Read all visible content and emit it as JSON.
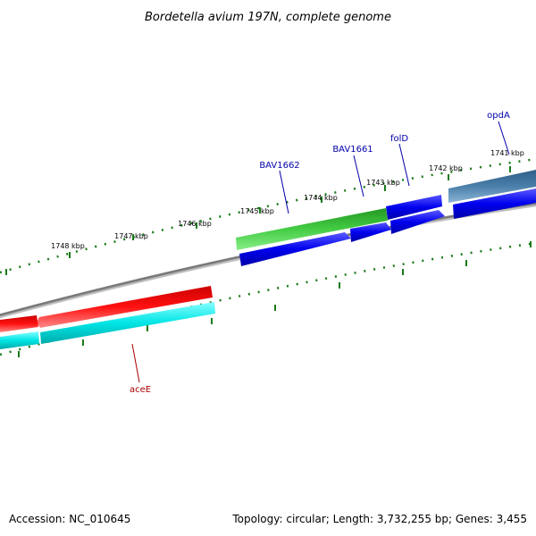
{
  "title": "Bordetella avium 197N, complete genome",
  "footer": {
    "accession": "Accession: NC_010645",
    "summary": "Topology: circular; Length: 3,732,255 bp; Genes: 3,455"
  },
  "colors": {
    "backbone": "#808080",
    "tick": "#1a7a1a",
    "forward_cds": "#0000ee",
    "green_gene": "#33bb33",
    "steel_gene": "#4a7faa",
    "red_gene": "#ee0000",
    "cyan_gene": "#00e5e5",
    "label_blue": "#0000aa",
    "label_red": "#aa0000"
  },
  "ticks": [
    {
      "kbp": 1741,
      "label": "1741 kbp"
    },
    {
      "kbp": 1742,
      "label": "1742 kbp"
    },
    {
      "kbp": 1743,
      "label": "1743 kbp"
    },
    {
      "kbp": 1744,
      "label": "1744 kbp"
    },
    {
      "kbp": 1745,
      "label": "1745 kbp"
    },
    {
      "kbp": 1746,
      "label": "1746 kbp"
    },
    {
      "kbp": 1747,
      "label": "1747 kbp"
    },
    {
      "kbp": 1748,
      "label": "1748 kbp"
    }
  ],
  "gene_labels": [
    {
      "name": "opdA",
      "color": "label_blue"
    },
    {
      "name": "folD",
      "color": "label_blue"
    },
    {
      "name": "BAV1661",
      "color": "label_blue"
    },
    {
      "name": "BAV1662",
      "color": "label_blue"
    },
    {
      "name": "aceE",
      "color": "label_red"
    }
  ]
}
